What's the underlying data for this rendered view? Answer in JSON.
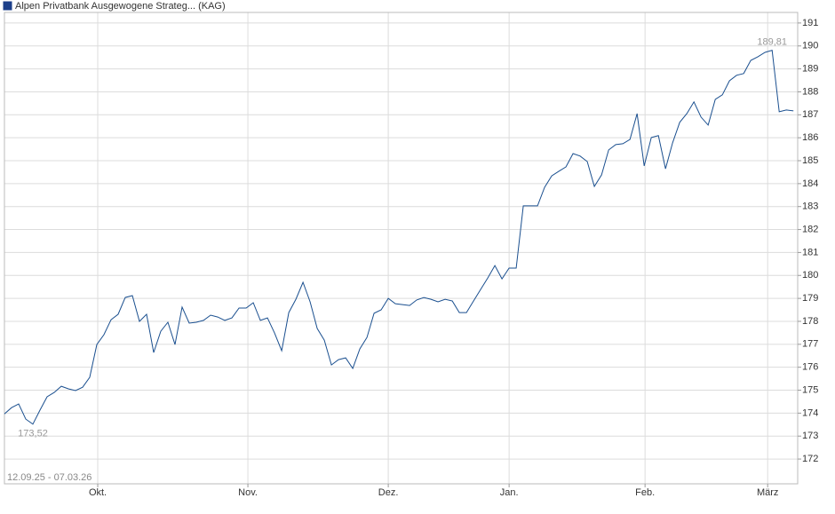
{
  "chart_data": {
    "type": "line",
    "date_range": "12.09.25 - 07.03.26",
    "series": [
      {
        "name": "Alpen Privatbank Ausgewogene Strateg... (KAG)",
        "color": "#1a4f8f",
        "values": [
          173.97,
          174.24,
          174.4,
          173.74,
          173.52,
          174.13,
          174.71,
          174.9,
          175.17,
          175.06,
          174.98,
          175.13,
          175.56,
          176.99,
          177.42,
          178.07,
          178.31,
          179.04,
          179.12,
          178.0,
          178.31,
          176.64,
          177.57,
          177.96,
          176.99,
          178.62,
          177.92,
          177.96,
          178.04,
          178.27,
          178.19,
          178.04,
          178.15,
          178.58,
          178.58,
          178.81,
          178.04,
          178.15,
          177.49,
          176.72,
          178.38,
          178.96,
          179.7,
          178.85,
          177.69,
          177.18,
          176.1,
          176.33,
          176.41,
          175.95,
          176.8,
          177.3,
          178.35,
          178.5,
          179.0,
          178.77,
          178.73,
          178.69,
          178.93,
          179.04,
          178.96,
          178.85,
          178.96,
          178.89,
          178.38,
          178.38,
          178.89,
          179.39,
          179.89,
          180.43,
          179.85,
          180.32,
          180.32,
          183.03,
          183.03,
          183.03,
          183.84,
          184.34,
          184.54,
          184.73,
          185.31,
          185.2,
          184.96,
          183.88,
          184.38,
          185.47,
          185.7,
          185.74,
          185.93,
          187.05,
          184.77,
          186.01,
          186.09,
          184.65,
          185.78,
          186.67,
          187.05,
          187.56,
          186.9,
          186.55,
          187.67,
          187.87,
          188.48,
          188.72,
          188.8,
          189.37,
          189.53,
          189.72,
          189.81,
          187.13,
          187.21,
          187.17
        ]
      }
    ],
    "point_labels": [
      {
        "value": 173.52,
        "label": "173,52"
      },
      {
        "value": 189.81,
        "label": "189,81"
      }
    ],
    "xlim": [
      0,
      111.6
    ],
    "xticks": [
      {
        "value": 13.125,
        "label": "Okt."
      },
      {
        "value": 34.25,
        "label": "Nov."
      },
      {
        "value": 54,
        "label": "Dez."
      },
      {
        "value": 71,
        "label": "Jan."
      },
      {
        "value": 90.125,
        "label": "Feb."
      },
      {
        "value": 107.375,
        "label": "März"
      }
    ],
    "ylim": [
      170.92,
      191.46
    ],
    "yticks": [
      172,
      173,
      174,
      175,
      176,
      177,
      178,
      179,
      180,
      181,
      182,
      183,
      184,
      185,
      186,
      187,
      188,
      189,
      190,
      191
    ],
    "grid": true
  }
}
